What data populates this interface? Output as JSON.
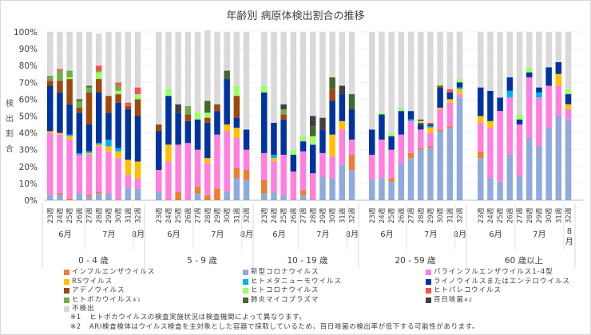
{
  "chart_data": {
    "type": "bar",
    "stacked": true,
    "title": "年齢別 病原体検出割合の推移",
    "ylabel": "検出割合",
    "ylim": [
      0,
      100
    ],
    "yticks": [
      "0%",
      "10%",
      "20%",
      "30%",
      "40%",
      "50%",
      "60%",
      "70%",
      "80%",
      "90%",
      "100%"
    ],
    "grid": true,
    "legend_position": "bottom",
    "weeks": [
      "23週",
      "24週",
      "25週",
      "26週",
      "27週",
      "28週",
      "29週",
      "30週",
      "31週",
      "32週"
    ],
    "months": [
      {
        "label": "6月",
        "span": 4
      },
      {
        "label": "7月",
        "span": 5
      },
      {
        "label": "8月",
        "span": 1
      }
    ],
    "series_order": [
      "covid",
      "influenza",
      "parainfluenza",
      "rs",
      "metapneumo",
      "rhino",
      "adeno",
      "hcov",
      "bocavirus",
      "parecho",
      "mycoplasma",
      "pertussis",
      "none"
    ],
    "series": [
      {
        "key": "influenza",
        "name": "インフルエンザウイルス",
        "color": "#ED7D31"
      },
      {
        "key": "covid",
        "name": "新型コロナウイルス",
        "color": "#8FAADC"
      },
      {
        "key": "parainfluenza",
        "name": "パラインフルエンザウイルス1-4型",
        "color": "#FF7FDF"
      },
      {
        "key": "rs",
        "name": "RSウイルス",
        "color": "#FFC000"
      },
      {
        "key": "metapneumo",
        "name": "ヒトメタニューモウイルス",
        "color": "#00B0F0"
      },
      {
        "key": "rhino",
        "name": "ライノウイルスまたはエンテロウイルス",
        "color": "#0033A0"
      },
      {
        "key": "adeno",
        "name": "アデノウイルス",
        "color": "#9E480E"
      },
      {
        "key": "hcov",
        "name": "ヒトコロナウイルス",
        "color": "#99FF66"
      },
      {
        "key": "parecho",
        "name": "ヒトパレコウイルス",
        "color": "#FF5050"
      },
      {
        "key": "bocavirus",
        "name": "ヒトボカウイルス",
        "note": "※1",
        "color": "#70AD47"
      },
      {
        "key": "mycoplasma",
        "name": "肺炎マイコプラズマ",
        "color": "#43682B"
      },
      {
        "key": "pertussis",
        "name": "百日咳菌",
        "note": "※2",
        "color": "#404040"
      },
      {
        "key": "none",
        "name": "不検出",
        "color": "#D9D9D9"
      }
    ],
    "groups": [
      {
        "label": "0 - 4 歳",
        "bars": [
          {
            "covid": 3,
            "parainfluenza": 37,
            "rs": 1,
            "rhino": 27,
            "adeno": 3,
            "bocavirus": 3,
            "none": 26
          },
          {
            "influenza": 1,
            "covid": 3,
            "parainfluenza": 35,
            "rs": 1,
            "rhino": 24,
            "adeno": 7,
            "parecho": 1,
            "bocavirus": 6,
            "none": 22
          },
          {
            "influenza": 1,
            "parainfluenza": 35,
            "rs": 2,
            "metapneumo": 1,
            "rhino": 18,
            "adeno": 15,
            "hcov": 1,
            "bocavirus": 4,
            "none": 23
          },
          {
            "covid": 4,
            "parainfluenza": 23,
            "metapneumo": 1,
            "rhino": 24,
            "adeno": 3,
            "bocavirus": 4,
            "mycoplasma": 1,
            "none": 40
          },
          {
            "influenza": 1,
            "covid": 2,
            "parainfluenza": 24,
            "rs": 1,
            "metapneumo": 1,
            "rhino": 16,
            "adeno": 19,
            "bocavirus": 3,
            "mycoplasma": 1,
            "none": 32
          },
          {
            "influenza": 1,
            "covid": 4,
            "parainfluenza": 27,
            "rs": 1,
            "metapneumo": 1,
            "rhino": 30,
            "adeno": 8,
            "hcov": 4,
            "parecho": 3,
            "bocavirus": 1,
            "none": 19
          },
          {
            "covid": 4,
            "parainfluenza": 25,
            "rs": 3,
            "metapneumo": 4,
            "rhino": 16,
            "adeno": 10,
            "none": 38
          },
          {
            "parainfluenza": 25,
            "rs": 4,
            "metapneumo": 2,
            "rhino": 27,
            "adeno": 5,
            "hcov": 2,
            "parecho": 2,
            "bocavirus": 3,
            "none": 30
          },
          {
            "covid": 7,
            "parainfluenza": 8,
            "rs": 9,
            "rhino": 30,
            "adeno": 2,
            "parecho": 2,
            "none": 42
          },
          {
            "covid": 7,
            "parainfluenza": 6,
            "rs": 10,
            "rhino": 27,
            "adeno": 10,
            "hcov": 3,
            "parecho": 4,
            "none": 33
          }
        ]
      },
      {
        "label": "5 - 9 歳",
        "bars": [
          {
            "covid": 5,
            "parainfluenza": 13,
            "rhino": 23,
            "adeno": 4,
            "none": 55
          },
          {
            "parainfluenza": 23,
            "rs": 10,
            "rhino": 29,
            "hcov": 4,
            "none": 34
          },
          {
            "influenza": 5,
            "parainfluenza": 28,
            "rhino": 19,
            "pertussis": 5,
            "none": 43
          },
          {
            "parainfluenza": 34,
            "rhino": 13,
            "adeno": 4,
            "bocavirus": 5,
            "none": 44
          },
          {
            "influenza": 4,
            "covid": 4,
            "parainfluenza": 22,
            "rhino": 18,
            "hcov": 4,
            "none": 48
          },
          {
            "influenza": 3,
            "parainfluenza": 19,
            "rs": 3,
            "rhino": 21,
            "adeno": 3,
            "hcov": 3,
            "mycoplasma": 7,
            "none": 42
          },
          {
            "influenza": 7,
            "parainfluenza": 32,
            "rhino": 14,
            "adeno": 4,
            "none": 43
          },
          {
            "covid": 5,
            "parainfluenza": 36,
            "rs": 4,
            "rhino": 27,
            "mycoplasma": 5,
            "none": 23
          },
          {
            "influenza": 6,
            "covid": 13,
            "parainfluenza": 18,
            "rs": 6,
            "rhino": 6,
            "adeno": 13,
            "hcov": 6,
            "none": 32
          },
          {
            "influenza": 6,
            "covid": 12,
            "parainfluenza": 12,
            "rhino": 12,
            "none": 58
          }
        ]
      },
      {
        "label": "10 - 19 歳",
        "bars": [
          {
            "influenza": 8,
            "covid": 4,
            "parainfluenza": 16,
            "rhino": 36,
            "hcov": 4,
            "none": 32
          },
          {
            "covid": 5,
            "parainfluenza": 18,
            "rs": 2,
            "metapneumo": 2,
            "rhino": 19,
            "none": 54
          },
          {
            "covid": 3,
            "parainfluenza": 24,
            "rhino": 21,
            "adeno": 3,
            "bocavirus": 3,
            "pertussis": 3,
            "none": 43
          },
          {
            "parainfluenza": 17,
            "rhino": 10,
            "hcov": 3,
            "none": 70
          },
          {
            "influenza": 3,
            "covid": 3,
            "parainfluenza": 23,
            "rhino": 6,
            "hcov": 3,
            "none": 62
          },
          {
            "parainfluenza": 16,
            "rhino": 17,
            "hcov": 5,
            "mycoplasma": 6,
            "pertussis": 6,
            "none": 50
          },
          {
            "covid": 14,
            "parainfluenza": 14,
            "rhino": 14,
            "pertussis": 7,
            "none": 51
          },
          {
            "covid": 13,
            "parainfluenza": 13,
            "rs": 13,
            "rhino": 20,
            "adeno": 7,
            "mycoplasma": 7,
            "none": 27
          },
          {
            "covid": 21,
            "parainfluenza": 21,
            "rs": 5,
            "rhino": 16,
            "pertussis": 5,
            "none": 32
          },
          {
            "influenza": 9,
            "covid": 18,
            "parainfluenza": 9,
            "rhino": 18,
            "mycoplasma": 9,
            "none": 37
          }
        ]
      },
      {
        "label": "20 - 59 歳",
        "bars": [
          {
            "covid": 12,
            "parainfluenza": 15,
            "rhino": 15,
            "none": 58
          },
          {
            "covid": 13,
            "parainfluenza": 23,
            "rhino": 15,
            "hcov": 1,
            "none": 48
          },
          {
            "influenza": 2,
            "covid": 11,
            "parainfluenza": 17,
            "rhino": 8,
            "hcov": 2,
            "none": 60
          },
          {
            "covid": 22,
            "parainfluenza": 17,
            "rhino": 14,
            "hcov": 2,
            "none": 45
          },
          {
            "influenza": 3,
            "covid": 25,
            "parainfluenza": 19,
            "metapneumo": 1,
            "rhino": 5,
            "none": 47
          },
          {
            "influenza": 1,
            "covid": 30,
            "parainfluenza": 11,
            "rhino": 3,
            "adeno": 1,
            "hcov": 1,
            "mycoplasma": 1,
            "none": 52
          },
          {
            "influenza": 1,
            "covid": 31,
            "parainfluenza": 8,
            "rs": 3,
            "metapneumo": 1,
            "rhino": 1,
            "parecho": 1,
            "none": 54
          },
          {
            "influenza": 1,
            "covid": 41,
            "parainfluenza": 12,
            "rs": 1,
            "rhino": 12,
            "adeno": 1,
            "hcov": 1,
            "none": 31
          },
          {
            "influenza": 1,
            "covid": 43,
            "parainfluenza": 14,
            "rs": 2,
            "rhino": 4,
            "parecho": 2,
            "none": 34
          },
          {
            "covid": 61,
            "parainfluenza": 2,
            "rs": 3,
            "metapneumo": 1,
            "rhino": 3,
            "hcov": 2,
            "none": 28
          }
        ]
      },
      {
        "label": "60 歳以上",
        "bars": [
          {
            "influenza": 4,
            "covid": 25,
            "parainfluenza": 17,
            "rs": 4,
            "rhino": 17,
            "none": 33
          },
          {
            "covid": 13,
            "parainfluenza": 30,
            "rs": 4,
            "rhino": 18,
            "none": 35
          },
          {
            "covid": 11,
            "parainfluenza": 42,
            "rhino": 8,
            "none": 39
          },
          {
            "covid": 27,
            "parainfluenza": 34,
            "metapneumo": 4,
            "rhino": 8,
            "none": 27
          },
          {
            "covid": 14,
            "parainfluenza": 31,
            "rhino": 3,
            "hcov": 3,
            "none": 49
          },
          {
            "covid": 37,
            "parainfluenza": 36,
            "rhino": 3,
            "hcov": 3,
            "none": 21
          },
          {
            "covid": 32,
            "parainfluenza": 29,
            "metapneumo": 3,
            "rhino": 3,
            "none": 33
          },
          {
            "covid": 43,
            "parainfluenza": 25,
            "rhino": 11,
            "none": 21
          },
          {
            "covid": 50,
            "parainfluenza": 18,
            "rs": 7,
            "rhino": 7,
            "none": 18
          },
          {
            "covid": 48,
            "parainfluenza": 6,
            "rs": 3,
            "rhino": 6,
            "hcov": 3,
            "none": 34
          }
        ]
      }
    ]
  },
  "legend": {
    "columns": [
      [
        "influenza",
        "rs",
        "adeno",
        "bocavirus",
        "none"
      ],
      [
        "covid",
        "metapneumo",
        "hcov",
        "mycoplasma"
      ],
      [
        "parainfluenza",
        "rhino",
        "parecho",
        "pertussis"
      ]
    ]
  },
  "notes": [
    {
      "key": "※1",
      "text": "ヒトボカウイルスの検査実施状況は検査機関によって異なります。"
    },
    {
      "key": "※2",
      "text": "ARI検査検体はウイルス検査を主対象とした容器で採取しているため、百日咳菌の検出率が低下する可能性があります。"
    }
  ]
}
